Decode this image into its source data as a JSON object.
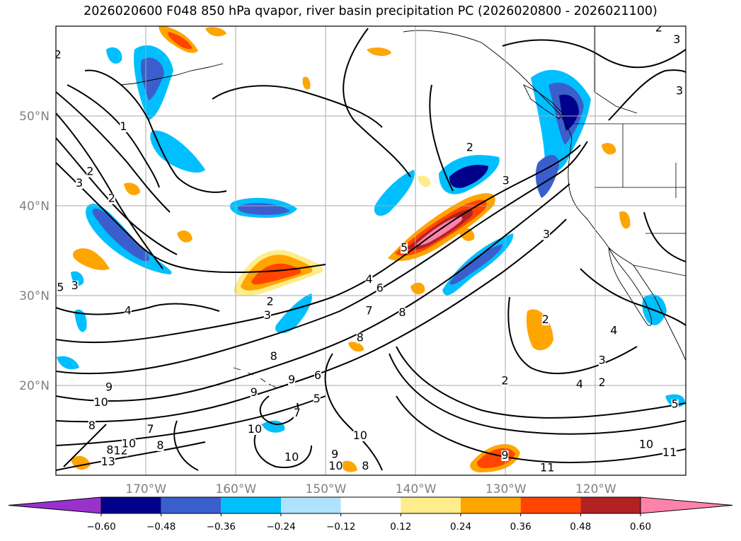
{
  "title": "2026020600 F048 850 hPa qvapor, river basin precipitation PC (2026020800 - 2026021100)",
  "chart_data": {
    "type": "heatmap",
    "title": "2026020600 F048 850 hPa qvapor, river basin precipitation PC (2026020800 - 2026021100)",
    "map_extent": {
      "lon": [
        -180,
        -110
      ],
      "lat": [
        10,
        60
      ]
    },
    "lat_ticks": [
      {
        "value": 20,
        "label": "20°N"
      },
      {
        "value": 30,
        "label": "30°N"
      },
      {
        "value": 40,
        "label": "40°N"
      },
      {
        "value": 50,
        "label": "50°N"
      }
    ],
    "lon_ticks": [
      {
        "value": -170,
        "label": "170°W"
      },
      {
        "value": -160,
        "label": "160°W"
      },
      {
        "value": -150,
        "label": "150°W"
      },
      {
        "value": -140,
        "label": "140°W"
      },
      {
        "value": -130,
        "label": "130°W"
      },
      {
        "value": -120,
        "label": "120°W"
      }
    ],
    "grid": true,
    "colorbar": {
      "levels": [
        -0.6,
        -0.48,
        -0.36,
        -0.24,
        -0.12,
        0.12,
        0.24,
        0.36,
        0.48,
        0.6
      ],
      "tick_labels": [
        "−0.60",
        "−0.48",
        "−0.36",
        "−0.24",
        "−0.12",
        "0.12",
        "0.24",
        "0.36",
        "0.48",
        "0.60"
      ],
      "colors": [
        "#9932cc",
        "#00008b",
        "#3a5fcd",
        "#00bfff",
        "#b0e2ff",
        "#ffffff",
        "#ffec8b",
        "#ffa500",
        "#ff4500",
        "#b22222",
        "#ff82ab"
      ],
      "extend": "both"
    },
    "contour_labels": [
      {
        "text": "2",
        "lon": -179.8,
        "lat": 56.5
      },
      {
        "text": "1",
        "lon": -172.5,
        "lat": 48.5
      },
      {
        "text": "2",
        "lon": -176.2,
        "lat": 43.5
      },
      {
        "text": "3",
        "lon": -177.4,
        "lat": 42.2
      },
      {
        "text": "2",
        "lon": -173.8,
        "lat": 40.5
      },
      {
        "text": "3",
        "lon": -177.9,
        "lat": 30.8
      },
      {
        "text": "4",
        "lon": -172.0,
        "lat": 28.0
      },
      {
        "text": "4",
        "lon": -145.2,
        "lat": 31.5
      },
      {
        "text": "6",
        "lon": -144.0,
        "lat": 30.5
      },
      {
        "text": "7",
        "lon": -145.2,
        "lat": 28.0
      },
      {
        "text": "8",
        "lon": -141.5,
        "lat": 27.8
      },
      {
        "text": "8",
        "lon": -146.2,
        "lat": 25.0
      },
      {
        "text": "2",
        "lon": -156.2,
        "lat": 29.0
      },
      {
        "text": "3",
        "lon": -156.5,
        "lat": 27.5
      },
      {
        "text": "5",
        "lon": -141.3,
        "lat": 35.0
      },
      {
        "text": "2",
        "lon": -134.0,
        "lat": 46.2
      },
      {
        "text": "3",
        "lon": -130.0,
        "lat": 42.5
      },
      {
        "text": "3",
        "lon": -125.5,
        "lat": 36.5
      },
      {
        "text": "2",
        "lon": -125.6,
        "lat": 27.0
      },
      {
        "text": "4",
        "lon": -118.0,
        "lat": 25.8
      },
      {
        "text": "3",
        "lon": -119.3,
        "lat": 22.5
      },
      {
        "text": "2",
        "lon": -130.1,
        "lat": 20.2
      },
      {
        "text": "4",
        "lon": -121.8,
        "lat": 19.8
      },
      {
        "text": "2",
        "lon": -113.0,
        "lat": 59.5
      },
      {
        "text": "3",
        "lon": -111.0,
        "lat": 58.2
      },
      {
        "text": "3",
        "lon": -110.7,
        "lat": 52.5
      },
      {
        "text": "5",
        "lon": -111.2,
        "lat": 17.6
      },
      {
        "text": "8",
        "lon": -155.8,
        "lat": 22.9
      },
      {
        "text": "9",
        "lon": -174.1,
        "lat": 19.5
      },
      {
        "text": "10",
        "lon": -175.0,
        "lat": 17.8
      },
      {
        "text": "9",
        "lon": -158.0,
        "lat": 18.9
      },
      {
        "text": "9",
        "lon": -153.8,
        "lat": 20.3
      },
      {
        "text": "6",
        "lon": -150.9,
        "lat": 20.8
      },
      {
        "text": "5",
        "lon": -151.0,
        "lat": 18.2
      },
      {
        "text": "7",
        "lon": -153.2,
        "lat": 16.6
      },
      {
        "text": "10",
        "lon": -157.9,
        "lat": 14.8
      },
      {
        "text": "10",
        "lon": -146.2,
        "lat": 14.1
      },
      {
        "text": "10",
        "lon": -153.8,
        "lat": 11.7
      },
      {
        "text": "9",
        "lon": -149.0,
        "lat": 12.0
      },
      {
        "text": "10",
        "lon": -148.9,
        "lat": 10.7
      },
      {
        "text": "8",
        "lon": -145.6,
        "lat": 10.7
      },
      {
        "text": "8",
        "lon": -168.4,
        "lat": 13.0
      },
      {
        "text": "8",
        "lon": -176.0,
        "lat": 15.2
      },
      {
        "text": "7",
        "lon": -169.5,
        "lat": 14.8
      },
      {
        "text": "8",
        "lon": -174.0,
        "lat": 12.5
      },
      {
        "text": "12",
        "lon": -172.8,
        "lat": 12.4
      },
      {
        "text": "13",
        "lon": -174.2,
        "lat": 11.2
      },
      {
        "text": "10",
        "lon": -171.9,
        "lat": 13.2
      },
      {
        "text": "9",
        "lon": -130.1,
        "lat": 11.9
      },
      {
        "text": "11",
        "lon": -125.4,
        "lat": 10.5
      },
      {
        "text": "10",
        "lon": -114.4,
        "lat": 13.1
      },
      {
        "text": "11",
        "lon": -111.8,
        "lat": 12.2
      },
      {
        "text": "2",
        "lon": -119.3,
        "lat": 20.0
      },
      {
        "text": "5",
        "lon": -179.5,
        "lat": 30.6
      }
    ]
  }
}
